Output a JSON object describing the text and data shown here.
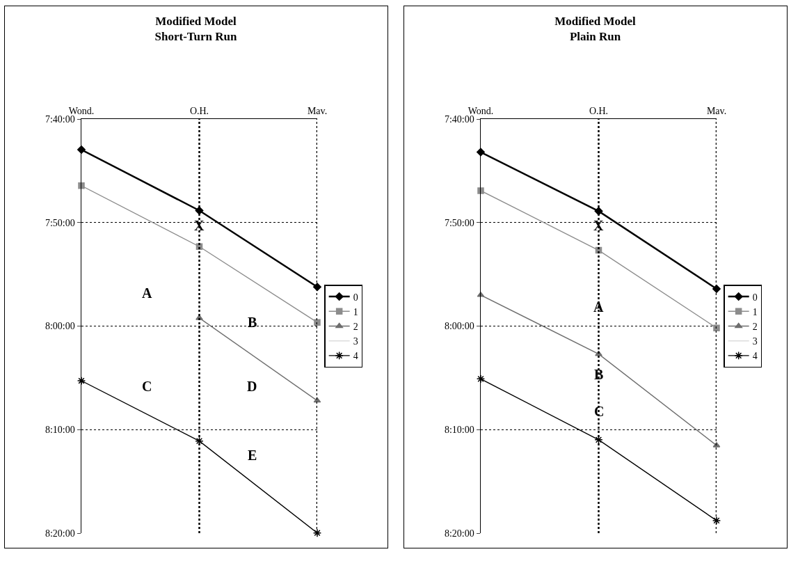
{
  "chart_data": [
    {
      "type": "line",
      "title": "Modified Model\nShort-Turn Run",
      "categories": [
        "Wond.",
        "O.H.",
        "Mav."
      ],
      "ylim": [
        8.3333,
        7.6667
      ],
      "yticks": [
        {
          "value": 7.6667,
          "label": "7:40:00"
        },
        {
          "value": 7.8333,
          "label": "7:50:00"
        },
        {
          "value": 8,
          "label": "8:00:00"
        },
        {
          "value": 8.1667,
          "label": "8:10:00"
        },
        {
          "value": 8.3333,
          "label": "8:20:00"
        }
      ],
      "grid": "y",
      "line_style": "solid",
      "legend": "right",
      "ref_lines": [
        {
          "axis": "x",
          "value": "O.H.",
          "line_style": "dotted"
        },
        {
          "axis": "x",
          "value": "Mav.",
          "line_style": "dotted"
        }
      ],
      "series": [
        {
          "name": "0",
          "color": "#000000",
          "marker": "diamond",
          "values": [
            7.716,
            7.814,
            7.937
          ]
        },
        {
          "name": "1",
          "color": "#8c8c8c",
          "marker": "square",
          "values": [
            7.774,
            7.872,
            7.994
          ]
        },
        {
          "name": "2",
          "color": "#6e6e6e",
          "marker": "triangle",
          "values": [
            null,
            7.987,
            8.12
          ]
        },
        {
          "name": "3",
          "color": "#dcdcdc",
          "marker": "none",
          "values": [
            null,
            null,
            null
          ]
        },
        {
          "name": "4",
          "color": "#000000",
          "marker": "cross",
          "values": [
            8.088,
            8.185,
            8.333
          ]
        }
      ],
      "annotations": [
        "X",
        "A",
        "B",
        "C",
        "D",
        "E"
      ]
    },
    {
      "type": "line",
      "title": "Modified Model\nPlain Run",
      "categories": [
        "Wond.",
        "O.H.",
        "Mav."
      ],
      "ylim": [
        8.3333,
        7.6667
      ],
      "yticks": [
        {
          "value": 7.6667,
          "label": "7:40:00"
        },
        {
          "value": 7.8333,
          "label": "7:50:00"
        },
        {
          "value": 8,
          "label": "8:00:00"
        },
        {
          "value": 8.1667,
          "label": "8:10:00"
        },
        {
          "value": 8.3333,
          "label": "8:20:00"
        }
      ],
      "grid": "y",
      "line_style": "solid",
      "legend": "right",
      "ref_lines": [
        {
          "axis": "x",
          "value": "O.H.",
          "line_style": "dotted"
        },
        {
          "axis": "x",
          "value": "Mav.",
          "line_style": "dotted"
        }
      ],
      "series": [
        {
          "name": "0",
          "color": "#000000",
          "marker": "diamond",
          "values": [
            7.72,
            7.815,
            7.94
          ]
        },
        {
          "name": "1",
          "color": "#8c8c8c",
          "marker": "square",
          "values": [
            7.782,
            7.878,
            8.003
          ]
        },
        {
          "name": "2",
          "color": "#6e6e6e",
          "marker": "triangle",
          "values": [
            7.95,
            8.045,
            8.192
          ]
        },
        {
          "name": "3",
          "color": "#dcdcdc",
          "marker": "none",
          "values": [
            null,
            null,
            null
          ]
        },
        {
          "name": "4",
          "color": "#000000",
          "marker": "cross",
          "values": [
            8.085,
            8.183,
            8.313
          ]
        }
      ],
      "annotations": [
        "X",
        "A",
        "B",
        "C"
      ]
    }
  ]
}
